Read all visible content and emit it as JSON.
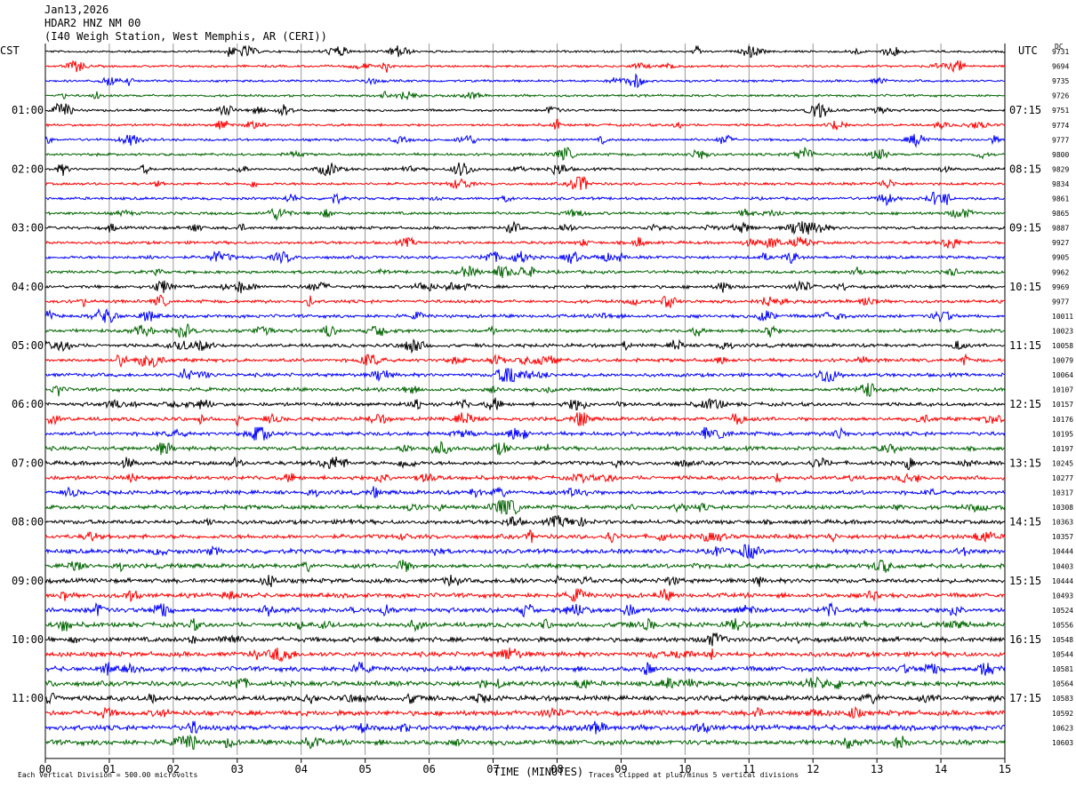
{
  "header": {
    "date": "Jan13,2026",
    "station": "HDAR2 HNZ NM 00",
    "location": "(I40 Weigh Station, West Memphis, AR (CERI))",
    "left_tz": "CST",
    "right_tz": "UTC",
    "dc_label": "DC"
  },
  "footer": {
    "scale_note": "Each Vertical Division =  500.00 microvolts",
    "clip_note": "Traces clipped at plus/minus 5 vertical divisions"
  },
  "colors": {
    "cycle": [
      "#000000",
      "#ff0000",
      "#0000ff",
      "#006400"
    ],
    "grid": "#808080"
  },
  "chart_data": {
    "type": "line",
    "title": "",
    "xlabel": "TIME (MINUTES)",
    "xlim": [
      0,
      15
    ],
    "x_ticks": [
      "00",
      "01",
      "02",
      "03",
      "04",
      "05",
      "06",
      "07",
      "08",
      "09",
      "10",
      "11",
      "12",
      "13",
      "14",
      "15"
    ],
    "rows_per_hour": 4,
    "left_labels": [
      "01:00",
      "02:00",
      "03:00",
      "04:00",
      "05:00",
      "06:00",
      "07:00",
      "08:00",
      "09:00",
      "10:00",
      "11:00"
    ],
    "right_labels": [
      "07:15",
      "08:15",
      "09:15",
      "10:15",
      "11:15",
      "12:15",
      "13:15",
      "14:15",
      "15:15",
      "16:15",
      "17:15"
    ],
    "dc_offsets": [
      "9731",
      "9694",
      "9735",
      "9726",
      "9751",
      "9774",
      "9777",
      "9800",
      "9829",
      "9834",
      "9861",
      "9865",
      "9887",
      "9927",
      "9905",
      "9962",
      "9969",
      "9977",
      "10011",
      "10023",
      "10058",
      "10079",
      "10064",
      "10107",
      "10157",
      "10176",
      "10195",
      "10197",
      "10245",
      "10277",
      "10317",
      "10308",
      "10363",
      "10357",
      "10444",
      "10403",
      "10444",
      "10493",
      "10524",
      "10556",
      "10548",
      "10544",
      "10581",
      "10564",
      "10583",
      "10592",
      "10623",
      "10603"
    ]
  }
}
